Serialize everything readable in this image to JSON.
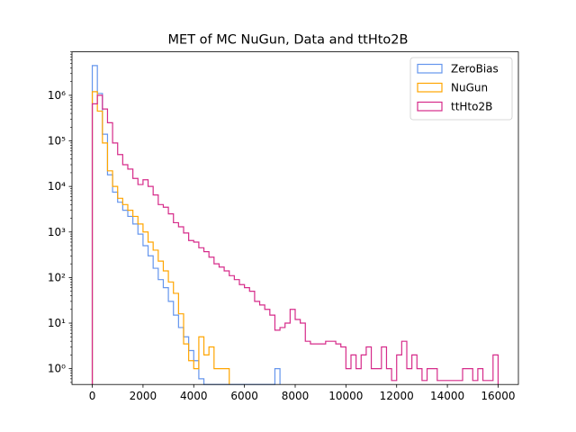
{
  "chart_data": {
    "type": "histogram",
    "title": "MET of MC NuGun, Data and ttHto2B",
    "xlabel": "",
    "ylabel": "",
    "xlim": [
      -800,
      16800
    ],
    "ylim": [
      0.45,
      9000000
    ],
    "yscale": "log",
    "bin_width": 200,
    "x_ticks": [
      0,
      2000,
      4000,
      6000,
      8000,
      10000,
      12000,
      14000,
      16000
    ],
    "x_tick_labels": [
      "0",
      "2000",
      "4000",
      "6000",
      "8000",
      "10000",
      "12000",
      "14000",
      "16000"
    ],
    "y_ticks": [
      1,
      10,
      100,
      1000,
      10000,
      100000,
      1000000
    ],
    "y_tick_labels": [
      "10⁰",
      "10¹",
      "10²",
      "10³",
      "10⁴",
      "10⁵",
      "10⁶"
    ],
    "legend_position": "top-right",
    "series": [
      {
        "name": "ZeroBias",
        "color": "#6495ED",
        "bins": [
          [
            0,
            4500000
          ],
          [
            200,
            1100000
          ],
          [
            400,
            140000
          ],
          [
            600,
            18000
          ],
          [
            800,
            7500
          ],
          [
            1000,
            4500
          ],
          [
            1200,
            3000
          ],
          [
            1400,
            2200
          ],
          [
            1600,
            1500
          ],
          [
            1800,
            900
          ],
          [
            2000,
            500
          ],
          [
            2200,
            300
          ],
          [
            2400,
            160
          ],
          [
            2600,
            90
          ],
          [
            2800,
            60
          ],
          [
            3000,
            30
          ],
          [
            3200,
            15
          ],
          [
            3400,
            8
          ],
          [
            3600,
            5
          ],
          [
            3800,
            2.5
          ],
          [
            4000,
            1.5
          ],
          [
            4200,
            0.6
          ],
          [
            7200,
            1
          ]
        ]
      },
      {
        "name": "NuGun",
        "color": "#FFA500",
        "bins": [
          [
            0,
            1200000
          ],
          [
            200,
            450000
          ],
          [
            400,
            90000
          ],
          [
            600,
            22000
          ],
          [
            800,
            10000
          ],
          [
            1000,
            5500
          ],
          [
            1200,
            4000
          ],
          [
            1400,
            3000
          ],
          [
            1600,
            2200
          ],
          [
            1800,
            1500
          ],
          [
            2000,
            1000
          ],
          [
            2200,
            600
          ],
          [
            2400,
            400
          ],
          [
            2600,
            230
          ],
          [
            2800,
            140
          ],
          [
            3000,
            80
          ],
          [
            3200,
            45
          ],
          [
            3400,
            16
          ],
          [
            3600,
            3.5
          ],
          [
            3800,
            1.5
          ],
          [
            4000,
            1
          ],
          [
            4200,
            5
          ],
          [
            4400,
            2
          ],
          [
            4600,
            3
          ],
          [
            4800,
            1
          ],
          [
            5000,
            1
          ],
          [
            5200,
            1
          ]
        ]
      },
      {
        "name": "ttHto2B",
        "color": "#D62B8A",
        "bins": [
          [
            0,
            650000
          ],
          [
            200,
            1000000
          ],
          [
            400,
            500000
          ],
          [
            600,
            250000
          ],
          [
            800,
            90000
          ],
          [
            1000,
            50000
          ],
          [
            1200,
            30000
          ],
          [
            1400,
            24000
          ],
          [
            1600,
            15000
          ],
          [
            1800,
            11000
          ],
          [
            2000,
            14000
          ],
          [
            2200,
            10000
          ],
          [
            2400,
            6500
          ],
          [
            2600,
            4000
          ],
          [
            2800,
            3500
          ],
          [
            3000,
            2500
          ],
          [
            3200,
            1600
          ],
          [
            3400,
            1300
          ],
          [
            3600,
            950
          ],
          [
            3800,
            650
          ],
          [
            4000,
            600
          ],
          [
            4200,
            450
          ],
          [
            4400,
            370
          ],
          [
            4600,
            280
          ],
          [
            4800,
            200
          ],
          [
            5000,
            170
          ],
          [
            5200,
            140
          ],
          [
            5400,
            110
          ],
          [
            5600,
            90
          ],
          [
            5800,
            70
          ],
          [
            6000,
            60
          ],
          [
            6200,
            50
          ],
          [
            6400,
            30
          ],
          [
            6600,
            25
          ],
          [
            6800,
            20
          ],
          [
            7000,
            15
          ],
          [
            7200,
            7
          ],
          [
            7400,
            8
          ],
          [
            7600,
            10
          ],
          [
            7800,
            20
          ],
          [
            8000,
            12
          ],
          [
            8200,
            10
          ],
          [
            8400,
            4
          ],
          [
            8600,
            3.5
          ],
          [
            8800,
            3.5
          ],
          [
            9000,
            3.5
          ],
          [
            9200,
            4
          ],
          [
            9400,
            4
          ],
          [
            9600,
            3.5
          ],
          [
            9800,
            3
          ],
          [
            10000,
            1
          ],
          [
            10200,
            2
          ],
          [
            10400,
            1
          ],
          [
            10600,
            2
          ],
          [
            10800,
            3
          ],
          [
            11000,
            1
          ],
          [
            11200,
            1
          ],
          [
            11400,
            3
          ],
          [
            11600,
            1
          ],
          [
            11800,
            0.55
          ],
          [
            12000,
            2
          ],
          [
            12200,
            4
          ],
          [
            12400,
            1
          ],
          [
            12600,
            2
          ],
          [
            12800,
            1
          ],
          [
            13000,
            0.55
          ],
          [
            13200,
            1
          ],
          [
            13400,
            1
          ],
          [
            13600,
            0.55
          ],
          [
            13800,
            0.55
          ],
          [
            14000,
            0.55
          ],
          [
            14200,
            0.55
          ],
          [
            14400,
            0.55
          ],
          [
            14600,
            1
          ],
          [
            14800,
            1
          ],
          [
            15000,
            0.55
          ],
          [
            15200,
            1
          ],
          [
            15400,
            0.55
          ],
          [
            15600,
            0.55
          ],
          [
            15800,
            2
          ]
        ]
      }
    ]
  }
}
